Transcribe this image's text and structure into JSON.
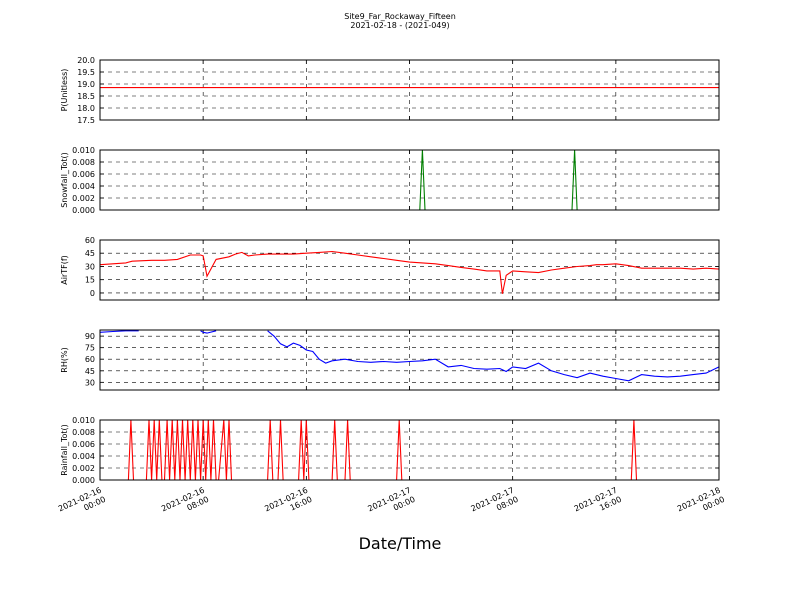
{
  "title_line1": "Site9_Far_Rockaway_Fifteen",
  "title_line2": "2021-02-18 - (2021-049)",
  "xlabel": "Date/Time",
  "colors": {
    "red": "#ff0000",
    "green": "#008000",
    "blue": "#0000ff",
    "grid": "#000000"
  },
  "chart_data": [
    {
      "type": "line",
      "ylabel": "P(Unitless)",
      "ylim": [
        17.5,
        20.0
      ],
      "yticks": [
        "17.5",
        "18.0",
        "18.5",
        "19.0",
        "19.5",
        "20.0"
      ],
      "ytick_values": [
        17.5,
        18.0,
        18.5,
        19.0,
        19.5,
        20.0
      ],
      "color": "red",
      "series": [
        {
          "x": [
            0,
            48
          ],
          "values": [
            18.85,
            18.85
          ]
        }
      ]
    },
    {
      "type": "line",
      "ylabel": "Snowfall_Tot()",
      "ylim": [
        0,
        0.01
      ],
      "yticks": [
        "0.000",
        "0.002",
        "0.004",
        "0.006",
        "0.008",
        "0.010"
      ],
      "ytick_values": [
        0,
        0.002,
        0.004,
        0.006,
        0.008,
        0.01
      ],
      "color": "green",
      "series": [
        {
          "x": [
            0,
            24.8,
            25.0,
            25.2,
            36.6,
            36.8,
            37.0,
            48
          ],
          "values": [
            0,
            0,
            0.01,
            0,
            0,
            0.01,
            0,
            0
          ]
        }
      ]
    },
    {
      "type": "line",
      "ylabel": "AirTF(f)",
      "ylim": [
        -8,
        60
      ],
      "yticks": [
        "0",
        "15",
        "30",
        "45",
        "60"
      ],
      "ytick_values": [
        0,
        15,
        30,
        45,
        60
      ],
      "color": "red",
      "series": [
        {
          "x": [
            0,
            1,
            2,
            2.5,
            4,
            5,
            6,
            7,
            7.8,
            8,
            8.3,
            9,
            10,
            10.5,
            11,
            11.5,
            12,
            13,
            14,
            15,
            16,
            17,
            18,
            19,
            20,
            21,
            22,
            23,
            24,
            25,
            26,
            27,
            28,
            29,
            30,
            31,
            31.2,
            31.5,
            32,
            33,
            34,
            35,
            36,
            37,
            38,
            38.5,
            39,
            40,
            41,
            42,
            43,
            44,
            45,
            46,
            47,
            48
          ],
          "values": [
            32,
            33,
            34,
            36,
            37,
            37,
            38,
            43,
            43,
            42,
            19,
            38,
            41,
            44,
            46,
            42,
            43,
            44,
            44,
            44,
            45,
            46,
            47,
            45,
            43,
            41,
            39,
            37,
            35,
            34,
            33,
            31,
            29,
            27,
            25,
            25,
            -1,
            20,
            25,
            24,
            23,
            26,
            28,
            30,
            31,
            32,
            32,
            33,
            31,
            28,
            28,
            28,
            28,
            27,
            28,
            27
          ]
        }
      ]
    },
    {
      "type": "line",
      "ylabel": "RH(%)",
      "ylim": [
        20,
        98
      ],
      "yticks": [
        "30",
        "45",
        "60",
        "75",
        "90"
      ],
      "ytick_values": [
        30,
        45,
        60,
        75,
        90
      ],
      "color": "blue",
      "series": [
        {
          "x": [
            0,
            1,
            2,
            3
          ],
          "values": [
            95,
            96,
            97,
            97
          ]
        },
        {
          "x": [
            7.8,
            8,
            8.3,
            9
          ],
          "values": [
            97,
            95,
            94,
            97
          ]
        },
        {
          "x": [
            13,
            13.5,
            14,
            14.5,
            15,
            15.5,
            16,
            16.5,
            17,
            17.5,
            18,
            19,
            20,
            21,
            22,
            23,
            24,
            25,
            26,
            27,
            28,
            29,
            30,
            31,
            31.5,
            32,
            33,
            34,
            35,
            36,
            37,
            38,
            39,
            40,
            41,
            42,
            43,
            44,
            45,
            46,
            47,
            48
          ],
          "values": [
            97,
            90,
            80,
            76,
            81,
            78,
            72,
            70,
            60,
            55,
            58,
            60,
            57,
            56,
            57,
            56,
            57,
            58,
            60,
            50,
            52,
            48,
            47,
            48,
            44,
            50,
            48,
            55,
            45,
            40,
            36,
            42,
            38,
            35,
            32,
            40,
            38,
            37,
            38,
            40,
            42,
            50
          ]
        }
      ]
    },
    {
      "type": "line",
      "ylabel": "Rainfall_Tot()",
      "ylim": [
        0,
        0.01
      ],
      "yticks": [
        "0.000",
        "0.002",
        "0.004",
        "0.006",
        "0.008",
        "0.010"
      ],
      "ytick_values": [
        0,
        0.002,
        0.004,
        0.006,
        0.008,
        0.01
      ],
      "color": "red",
      "series": [
        {
          "x": [
            0,
            2.2,
            2.4,
            2.6,
            3.6,
            3.8,
            4.0,
            4.2,
            4.4,
            4.6,
            4.8,
            5.0,
            5.2,
            5.4,
            5.6,
            5.8,
            6.0,
            6.2,
            6.4,
            6.6,
            6.8,
            7.0,
            7.2,
            7.4,
            7.6,
            7.8,
            8.0,
            8.2,
            8.4,
            8.6,
            8.8,
            9.0,
            9.2,
            9.6,
            9.8,
            10.0,
            10.2,
            10.4,
            10.6,
            10.8,
            11.0,
            11.2,
            11.4,
            11.6,
            11.8,
            12.0,
            12.2,
            13.0,
            13.2,
            13.4,
            13.8,
            14.0,
            14.2,
            15.4,
            15.6,
            15.8,
            16.0,
            16.2,
            16.4,
            18.0,
            18.2,
            18.4,
            19.0,
            19.2,
            19.4,
            23.0,
            23.2,
            23.4,
            41.2,
            41.4,
            41.6,
            48
          ],
          "values": [
            0,
            0,
            0.01,
            0,
            0,
            0.01,
            0,
            0.01,
            0,
            0.01,
            0,
            0,
            0.01,
            0,
            0.01,
            0,
            0.01,
            0,
            0.01,
            0,
            0.01,
            0,
            0.01,
            0,
            0.01,
            0,
            0.01,
            0,
            0.01,
            0,
            0.01,
            0,
            0,
            0.01,
            0,
            0.01,
            0,
            0,
            0,
            0,
            0,
            0,
            0,
            0,
            0,
            0,
            0,
            0,
            0.01,
            0,
            0,
            0.01,
            0,
            0,
            0.01,
            0,
            0.01,
            0,
            0,
            0,
            0.01,
            0,
            0,
            0.01,
            0,
            0,
            0.01,
            0,
            0,
            0.01,
            0,
            0
          ]
        }
      ]
    }
  ],
  "x_axis": {
    "range": [
      0,
      48
    ],
    "tick_values": [
      0,
      8,
      16,
      24,
      32,
      40,
      48
    ],
    "tick_labels": [
      [
        "2021-02-16",
        "00:00"
      ],
      [
        "2021-02-16",
        "08:00"
      ],
      [
        "2021-02-16",
        "16:00"
      ],
      [
        "2021-02-17",
        "00:00"
      ],
      [
        "2021-02-17",
        "08:00"
      ],
      [
        "2021-02-17",
        "16:00"
      ],
      [
        "2021-02-18",
        "00:00"
      ]
    ]
  }
}
